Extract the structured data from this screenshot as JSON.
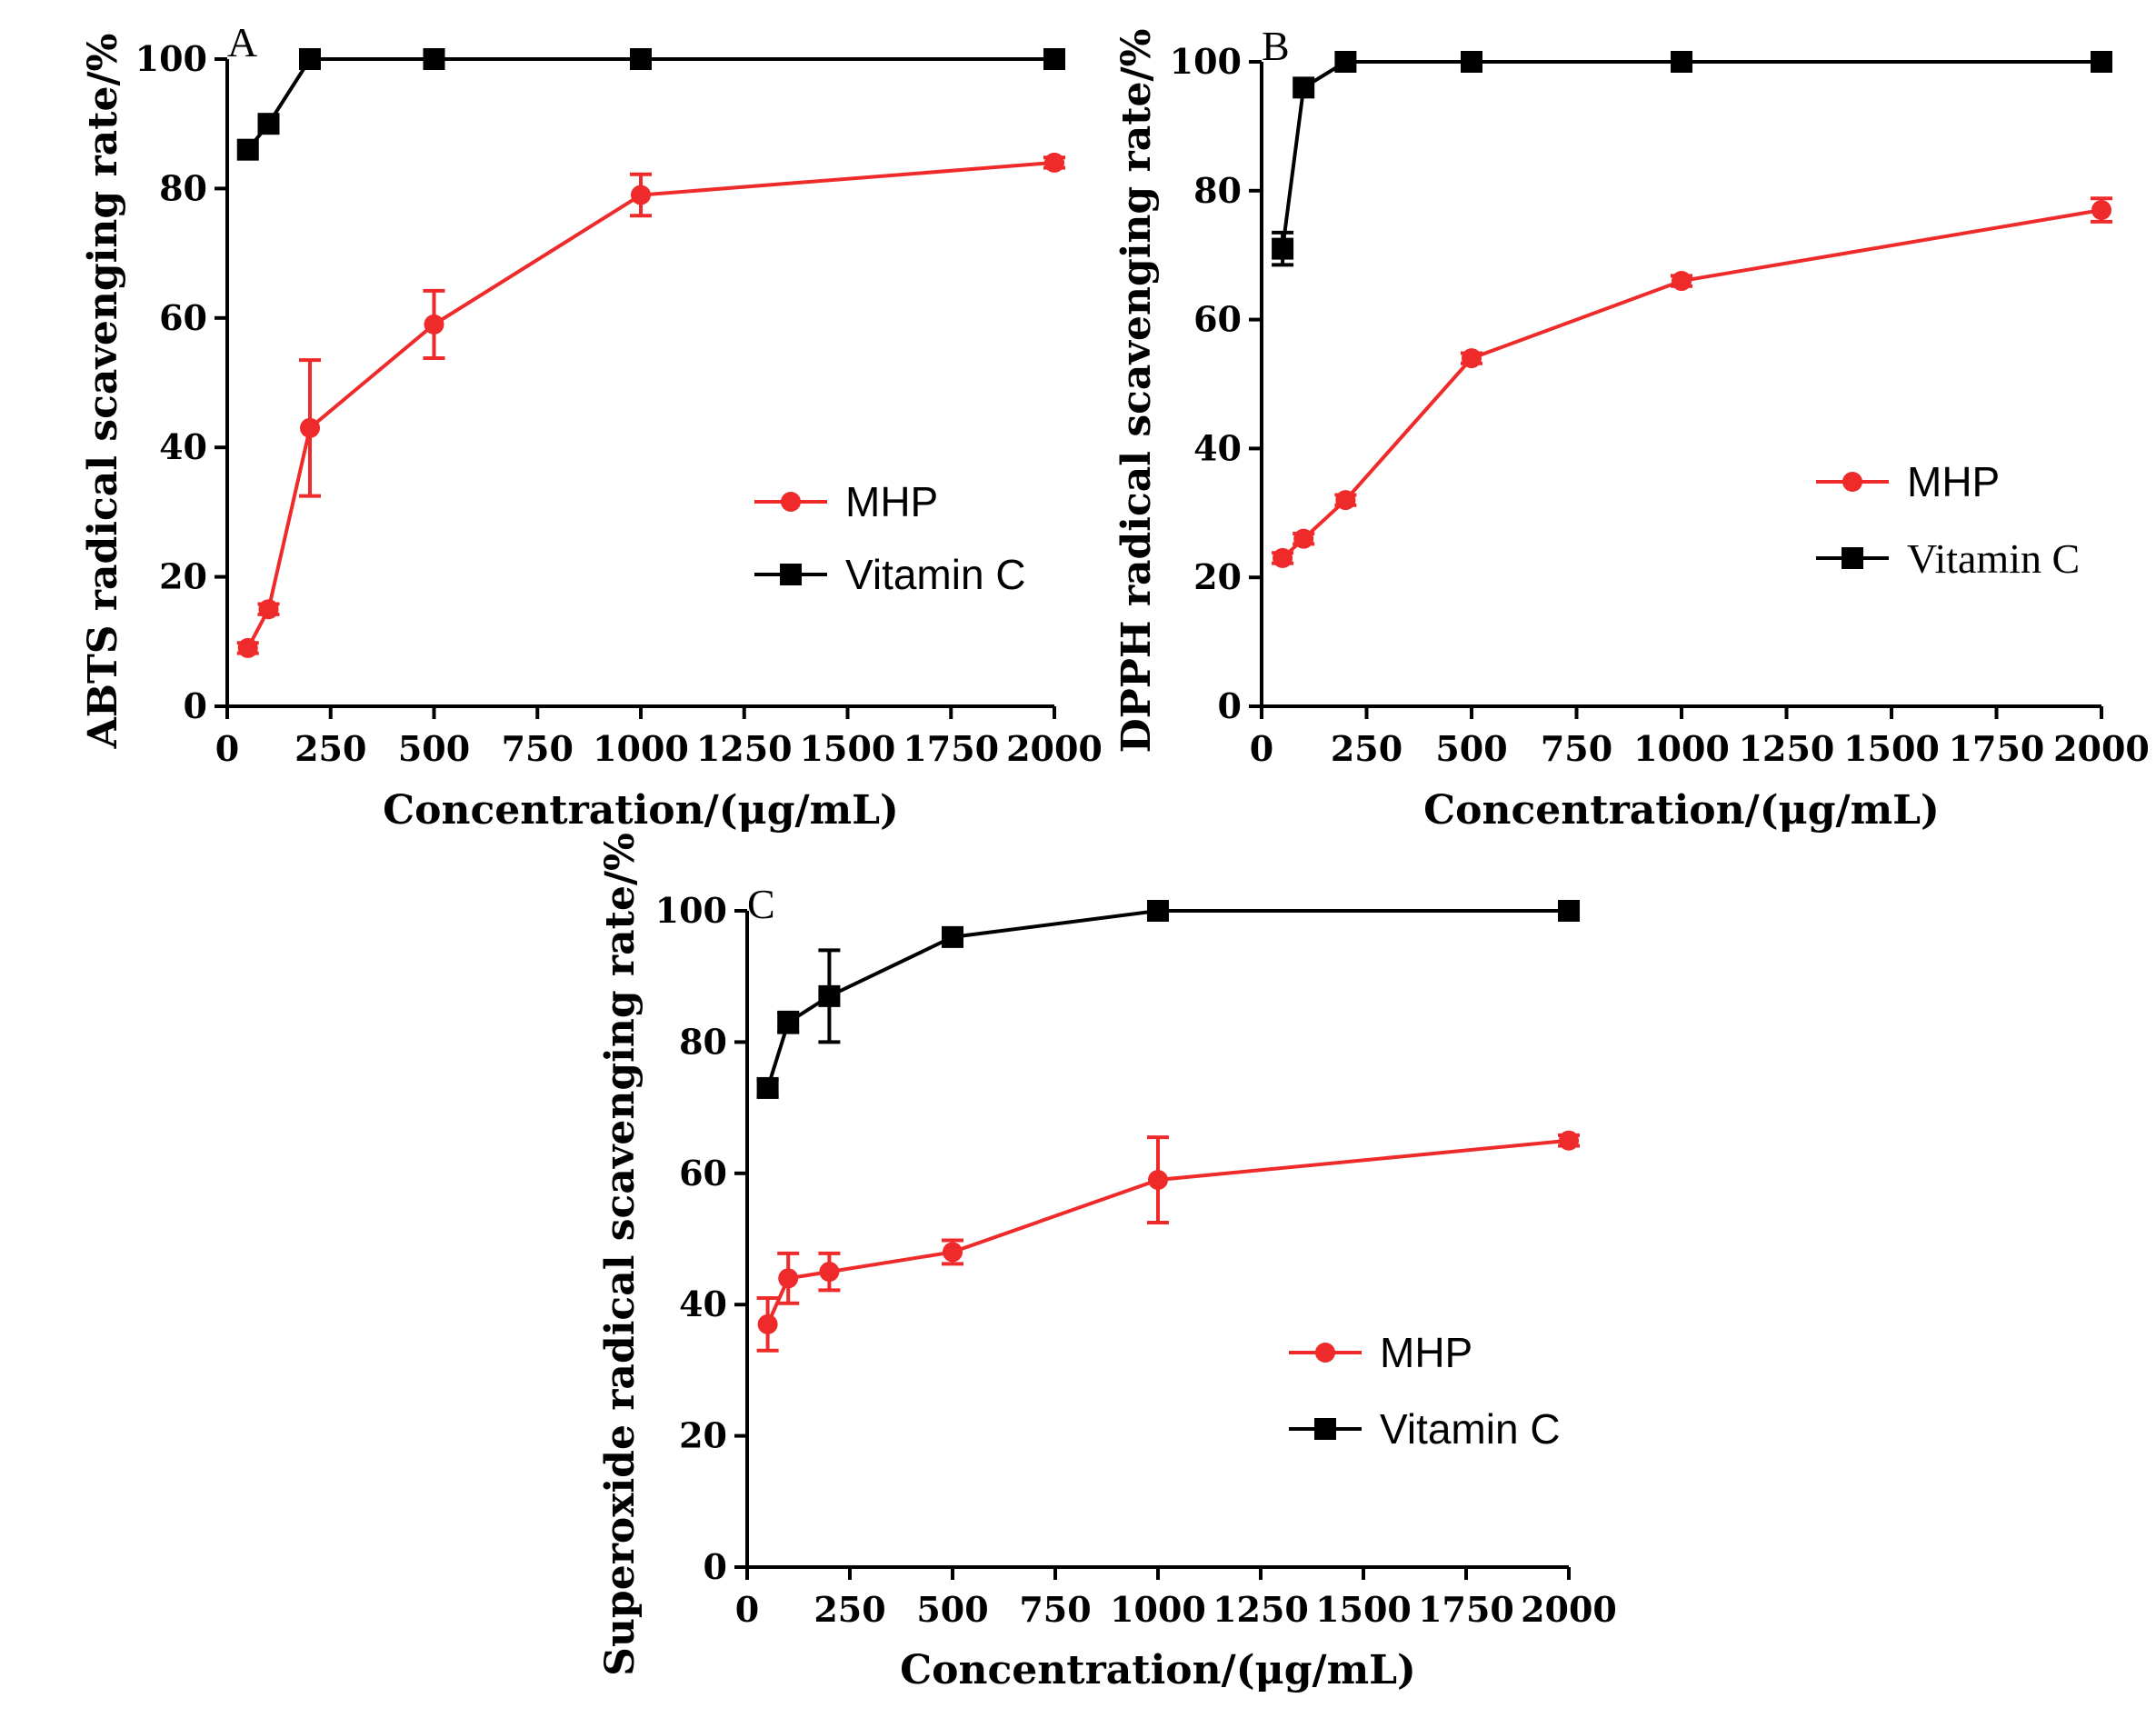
{
  "chart_data": [
    {
      "panel": "A",
      "type": "line",
      "ylabel": "ABTS radical scavenging rate/%",
      "xlabel": "Concentration/(μg/mL)",
      "xlim": [
        0,
        2000
      ],
      "ylim": [
        0,
        100
      ],
      "xticks": [
        "0",
        "250",
        "500",
        "750",
        "1000",
        "1250",
        "1500",
        "1750",
        "2000"
      ],
      "yticks": [
        "0",
        "20",
        "40",
        "60",
        "80",
        "100"
      ],
      "legend_position": "center-right",
      "series": [
        {
          "name": "MHP",
          "color": "#ee2a2a",
          "marker": "circle",
          "x": [
            50,
            100,
            200,
            500,
            1000,
            2000
          ],
          "y": [
            9,
            15,
            43,
            59,
            79,
            84
          ],
          "err": [
            0.8,
            0.8,
            10.5,
            5.2,
            3.2,
            0.8
          ]
        },
        {
          "name": "Vitamin C",
          "color": "#000000",
          "marker": "square",
          "x": [
            50,
            100,
            200,
            500,
            1000,
            2000
          ],
          "y": [
            86,
            90,
            100,
            100,
            100,
            100
          ],
          "err": [
            0,
            0,
            0,
            0,
            0,
            0
          ]
        }
      ]
    },
    {
      "panel": "B",
      "type": "line",
      "ylabel": "DPPH radical scavenging rate/%",
      "xlabel": "Concentration/(μg/mL)",
      "xlim": [
        0,
        2000
      ],
      "ylim": [
        0,
        100
      ],
      "xticks": [
        "0",
        "250",
        "500",
        "750",
        "1000",
        "1250",
        "1500",
        "1750",
        "2000"
      ],
      "yticks": [
        "0",
        "20",
        "40",
        "60",
        "80",
        "100"
      ],
      "legend_position": "center-right",
      "series": [
        {
          "name": "MHP",
          "color": "#ee2a2a",
          "marker": "circle",
          "x": [
            50,
            100,
            200,
            500,
            1000,
            2000
          ],
          "y": [
            23,
            26,
            32,
            54,
            66,
            77
          ],
          "err": [
            0.8,
            0.8,
            0.8,
            0.8,
            0.8,
            1.8
          ]
        },
        {
          "name": "Vitamin C",
          "color": "#000000",
          "marker": "square",
          "x": [
            50,
            100,
            200,
            500,
            1000,
            2000
          ],
          "y": [
            71,
            96,
            100,
            100,
            100,
            100
          ],
          "err": [
            2.5,
            0,
            0,
            0,
            0,
            0
          ]
        }
      ]
    },
    {
      "panel": "C",
      "type": "line",
      "ylabel": "Superoxide radical scavenging rate/%",
      "xlabel": "Concentration/(μg/mL)",
      "xlim": [
        0,
        2000
      ],
      "ylim": [
        0,
        100
      ],
      "xticks": [
        "0",
        "250",
        "500",
        "750",
        "1000",
        "1250",
        "1500",
        "1750",
        "2000"
      ],
      "yticks": [
        "0",
        "20",
        "40",
        "60",
        "80",
        "100"
      ],
      "legend_position": "center-right",
      "series": [
        {
          "name": "MHP",
          "color": "#ee2a2a",
          "marker": "circle",
          "x": [
            50,
            100,
            200,
            500,
            1000,
            2000
          ],
          "y": [
            37,
            44,
            45,
            48,
            59,
            65
          ],
          "err": [
            4,
            3.8,
            2.8,
            1.8,
            6.5,
            0.8
          ]
        },
        {
          "name": "Vitamin C",
          "color": "#000000",
          "marker": "square",
          "x": [
            50,
            100,
            200,
            500,
            1000,
            2000
          ],
          "y": [
            73,
            83,
            87,
            96,
            100,
            100
          ],
          "err": [
            1.2,
            1.5,
            7,
            0.5,
            0,
            0
          ]
        }
      ]
    }
  ]
}
